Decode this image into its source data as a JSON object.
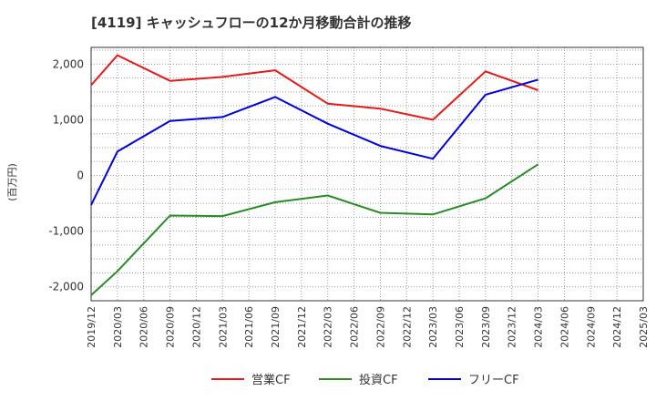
{
  "chart_data": {
    "type": "line",
    "title": "[4119]  キャッシュフローの12か月移動合計の推移",
    "ylabel": "(百万円)",
    "xlabel": "",
    "ylim": [
      -2250,
      2300
    ],
    "y_ticks": [
      2000,
      1000,
      0,
      -1000,
      -2000
    ],
    "y_tick_labels": [
      "2,000",
      "1,000",
      "0",
      "-1,000",
      "-2,000"
    ],
    "x_tick_labels": [
      "2019/12",
      "2020/03",
      "2020/06",
      "2020/09",
      "2020/12",
      "2021/03",
      "2021/06",
      "2021/09",
      "2021/12",
      "2022/03",
      "2022/06",
      "2022/09",
      "2022/12",
      "2023/03",
      "2023/06",
      "2023/09",
      "2023/12",
      "2024/03",
      "2024/06",
      "2024/09",
      "2024/12",
      "2025/03"
    ],
    "grid": true,
    "legend_position": "bottom",
    "series": [
      {
        "name": "営業CF",
        "color": "#e41a1c",
        "points": [
          {
            "x": "2019/12",
            "y": 1620
          },
          {
            "x": "2020/03",
            "y": 2160
          },
          {
            "x": "2020/09",
            "y": 1700
          },
          {
            "x": "2021/03",
            "y": 1770
          },
          {
            "x": "2021/09",
            "y": 1890
          },
          {
            "x": "2022/03",
            "y": 1290
          },
          {
            "x": "2022/09",
            "y": 1200
          },
          {
            "x": "2023/03",
            "y": 1000
          },
          {
            "x": "2023/09",
            "y": 1870
          },
          {
            "x": "2024/03",
            "y": 1530
          }
        ]
      },
      {
        "name": "投資CF",
        "color": "#2a8a2a",
        "points": [
          {
            "x": "2019/12",
            "y": -2150
          },
          {
            "x": "2020/03",
            "y": -1720
          },
          {
            "x": "2020/09",
            "y": -720
          },
          {
            "x": "2021/03",
            "y": -730
          },
          {
            "x": "2021/09",
            "y": -480
          },
          {
            "x": "2022/03",
            "y": -360
          },
          {
            "x": "2022/09",
            "y": -670
          },
          {
            "x": "2023/03",
            "y": -700
          },
          {
            "x": "2023/09",
            "y": -410
          },
          {
            "x": "2024/03",
            "y": 200
          }
        ]
      },
      {
        "name": "フリーCF",
        "color": "#0000dd",
        "points": [
          {
            "x": "2019/12",
            "y": -530
          },
          {
            "x": "2020/03",
            "y": 430
          },
          {
            "x": "2020/09",
            "y": 980
          },
          {
            "x": "2021/03",
            "y": 1050
          },
          {
            "x": "2021/09",
            "y": 1410
          },
          {
            "x": "2022/03",
            "y": 930
          },
          {
            "x": "2022/09",
            "y": 530
          },
          {
            "x": "2023/03",
            "y": 300
          },
          {
            "x": "2023/09",
            "y": 1450
          },
          {
            "x": "2024/03",
            "y": 1720
          }
        ]
      }
    ]
  }
}
